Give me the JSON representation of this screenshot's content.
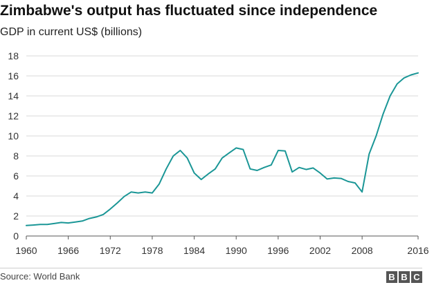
{
  "chart_data": {
    "type": "line",
    "title": "Zimbabwe's output has fluctuated since independence",
    "subtitle": "GDP in current US$ (billions)",
    "source": "Source: World Bank",
    "logo_text": "BBC",
    "xlabel": "",
    "ylabel": "",
    "xlim": [
      1960,
      2016
    ],
    "ylim": [
      0,
      18
    ],
    "yticks": [
      0,
      2,
      4,
      6,
      8,
      10,
      12,
      14,
      16,
      18
    ],
    "xticks": [
      1960,
      1966,
      1972,
      1978,
      1984,
      1990,
      1996,
      2002,
      2008,
      2016
    ],
    "grid": true,
    "line_color": "#1a9696",
    "series": [
      {
        "x": [
          1960,
          1961,
          1962,
          1963,
          1964,
          1965,
          1966,
          1967,
          1968,
          1969,
          1970,
          1971,
          1972,
          1973,
          1974,
          1975,
          1976,
          1977,
          1978,
          1979,
          1980,
          1981,
          1982,
          1983,
          1984,
          1985,
          1986,
          1987,
          1988,
          1989,
          1990,
          1991,
          1992,
          1993,
          1994,
          1995,
          1996,
          1997,
          1998,
          1999,
          2000,
          2001,
          2002,
          2003,
          2004,
          2005,
          2006,
          2007,
          2008,
          2009,
          2010,
          2011,
          2012,
          2013,
          2014,
          2015,
          2016
        ],
        "values": [
          1.05,
          1.1,
          1.15,
          1.15,
          1.25,
          1.35,
          1.3,
          1.4,
          1.5,
          1.75,
          1.9,
          2.15,
          2.7,
          3.3,
          3.95,
          4.4,
          4.3,
          4.4,
          4.3,
          5.2,
          6.7,
          8.0,
          8.55,
          7.8,
          6.3,
          5.65,
          6.2,
          6.7,
          7.8,
          8.3,
          8.8,
          8.65,
          6.7,
          6.55,
          6.85,
          7.1,
          8.55,
          8.5,
          6.4,
          6.85,
          6.65,
          6.8,
          6.3,
          5.7,
          5.8,
          5.75,
          5.45,
          5.3,
          4.4,
          8.2,
          10.0,
          12.2,
          14.0,
          15.2,
          15.8,
          16.1,
          16.3
        ]
      }
    ]
  }
}
